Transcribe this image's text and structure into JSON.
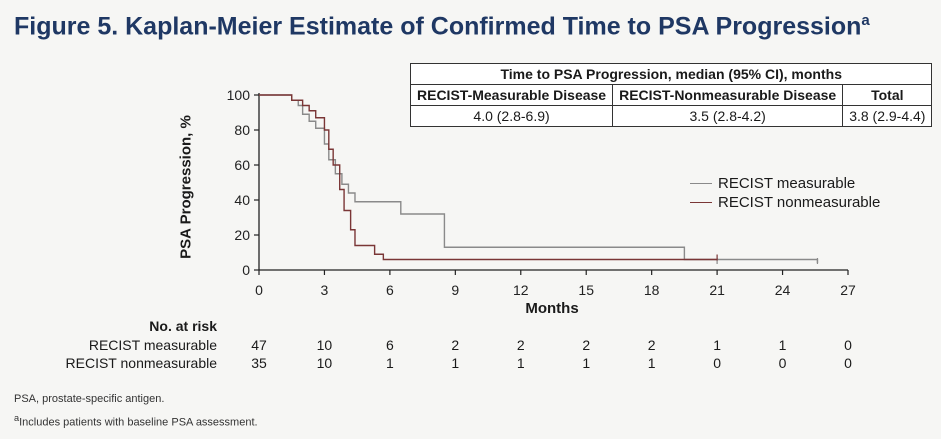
{
  "title": "Figure 5. Kaplan-Meier Estimate of Confirmed Time to PSA Progression",
  "title_sup": "a",
  "median_table": {
    "header": "Time to PSA Progression, median (95% CI), months",
    "columns": [
      "RECIST-Measurable Disease",
      "RECIST-Nonmeasurable Disease",
      "Total"
    ],
    "values": [
      "4.0 (2.8-6.9)",
      "3.5 (2.8-4.2)",
      "3.8 (2.9-4.4)"
    ]
  },
  "chart_data": {
    "type": "line",
    "ylabel": "PSA Progression, %",
    "xlabel": "Months",
    "xlim": [
      0,
      27
    ],
    "ylim": [
      0,
      100
    ],
    "xticks": [
      "0",
      "3",
      "6",
      "9",
      "12",
      "15",
      "18",
      "21",
      "24",
      "27"
    ],
    "yticks": [
      "0",
      "20",
      "40",
      "60",
      "80",
      "100"
    ],
    "legend_position": "right, below table",
    "series": [
      {
        "name": "RECIST measurable",
        "color": "#8a8a8a",
        "x": [
          0,
          1.5,
          1.8,
          2.0,
          2.3,
          2.6,
          3.0,
          3.2,
          3.5,
          3.8,
          4.1,
          4.4,
          6.5,
          8.5,
          19.5,
          25.6
        ],
        "y": [
          100,
          97,
          94,
          89,
          85,
          81,
          72,
          63,
          55,
          49,
          44,
          39,
          32,
          13,
          6,
          4
        ],
        "censor_x": [
          21.0,
          25.6
        ]
      },
      {
        "name": "RECIST nonmeasurable",
        "color": "#7a3636",
        "x": [
          0,
          1.5,
          2.0,
          2.3,
          2.6,
          3.0,
          3.2,
          3.4,
          3.7,
          3.9,
          4.2,
          4.4,
          5.3,
          5.7
        ],
        "y": [
          100,
          97,
          94,
          91,
          87,
          80,
          69,
          60,
          46,
          34,
          23,
          14,
          9,
          6
        ],
        "censor_x": [
          21.0
        ]
      }
    ]
  },
  "at_risk": {
    "header": "No. at risk",
    "rows": [
      {
        "name": "RECIST measurable",
        "values": [
          "47",
          "10",
          "6",
          "2",
          "2",
          "2",
          "2",
          "1",
          "1",
          "0"
        ]
      },
      {
        "name": "RECIST nonmeasurable",
        "values": [
          "35",
          "10",
          "1",
          "1",
          "1",
          "1",
          "1",
          "0",
          "0",
          "0"
        ]
      }
    ]
  },
  "footnotes": [
    "PSA, prostate-specific antigen.",
    "Includes patients with baseline PSA assessment."
  ],
  "footnote_marker": "a"
}
